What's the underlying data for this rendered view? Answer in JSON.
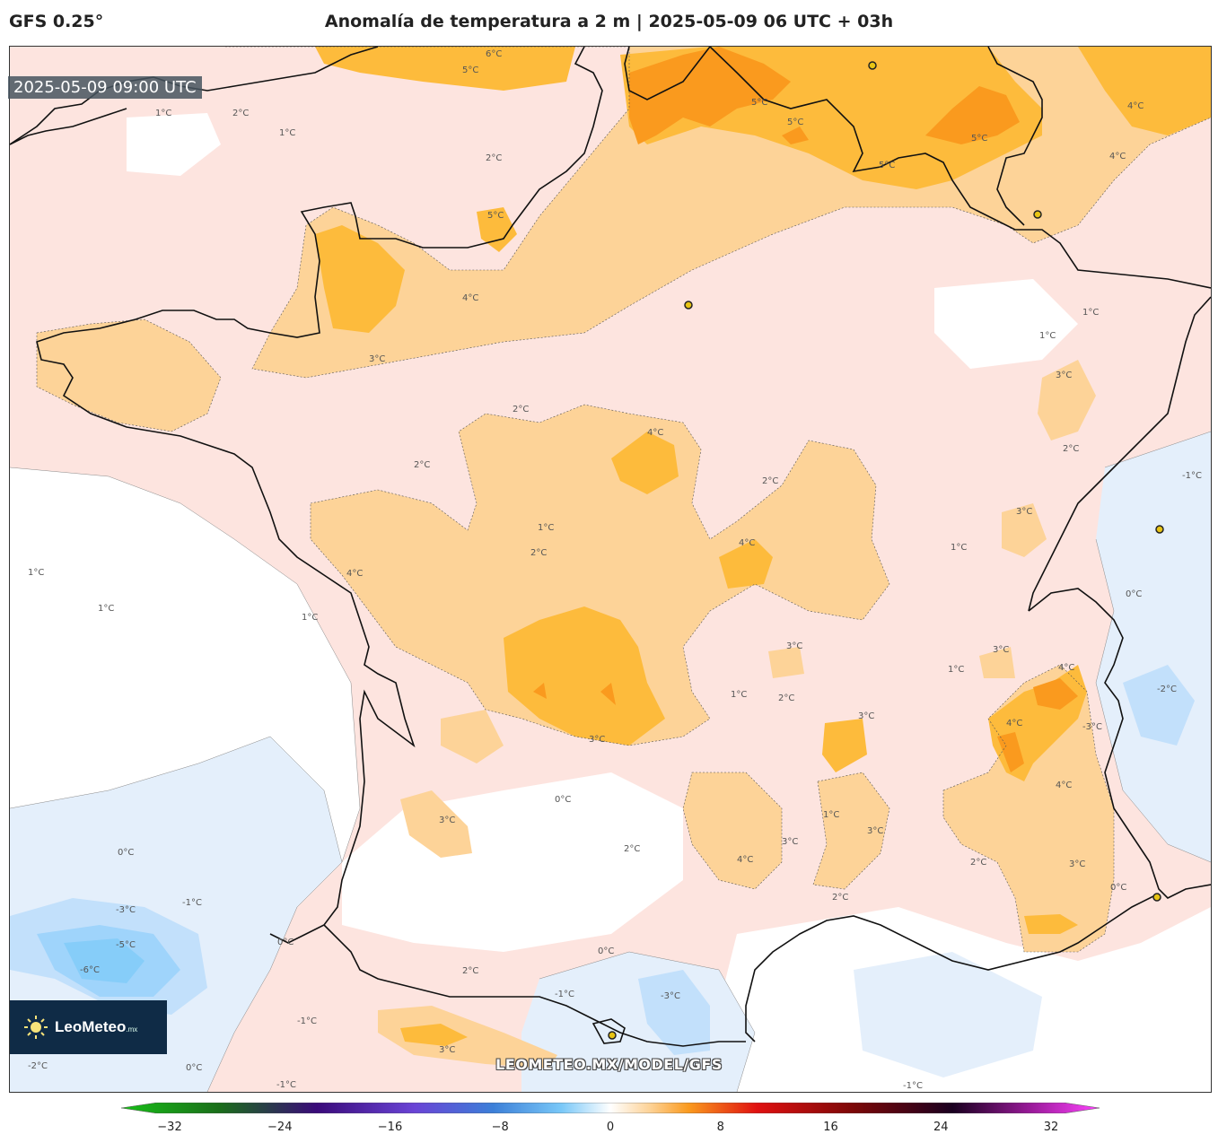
{
  "header": {
    "model": "GFS 0.25°",
    "title": "Anomalía de temperatura a 2 m | 2025-05-09 06 UTC + 03h"
  },
  "map": {
    "valid_time": "2025-05-09 09:00 UTC",
    "watermark": "LEOMETEO.MX/MODEL/GFS",
    "logo": {
      "name": "LeoMeteo",
      "suffix": ".mx"
    },
    "contour_labels": [
      "6°C",
      "5°C",
      "5°C",
      "5°C",
      "5°C",
      "5°C",
      "5°C",
      "4°C",
      "4°C",
      "4°C",
      "4°C",
      "4°C",
      "4°C",
      "4°C",
      "4°C",
      "4°C",
      "4°C",
      "3°C",
      "3°C",
      "3°C",
      "3°C",
      "3°C",
      "3°C",
      "3°C",
      "3°C",
      "3°C",
      "3°C",
      "3°C",
      "3°C",
      "2°C",
      "2°C",
      "2°C",
      "2°C",
      "2°C",
      "2°C",
      "2°C",
      "2°C",
      "2°C",
      "2°C",
      "2°C",
      "2°C",
      "1°C",
      "1°C",
      "1°C",
      "1°C",
      "1°C",
      "1°C",
      "1°C",
      "1°C",
      "1°C",
      "1°C",
      "1°C",
      "1°C",
      "0°C",
      "0°C",
      "0°C",
      "0°C",
      "0°C",
      "0°C",
      "0°C",
      "-1°C",
      "-1°C",
      "-1°C",
      "-1°C",
      "-1°C",
      "-1°C",
      "-2°C",
      "-2°C",
      "-3°C",
      "-3°C",
      "-3°C",
      "-5°C",
      "-6°C"
    ],
    "colors": {
      "strong_warm": "#fa9a1e",
      "warm": "#fdbb3c",
      "mild_warm": "#fdd398",
      "slight_warm": "#fde4df",
      "neutral": "#ffffff",
      "slight_cold": "#e4effb",
      "cold": "#c2e0fb",
      "colder": "#9fd4fb",
      "coldest": "#86cdf9"
    }
  },
  "colorbar": {
    "ticks": [
      "−32",
      "−24",
      "−16",
      "−8",
      "0",
      "8",
      "16",
      "24",
      "32"
    ]
  }
}
